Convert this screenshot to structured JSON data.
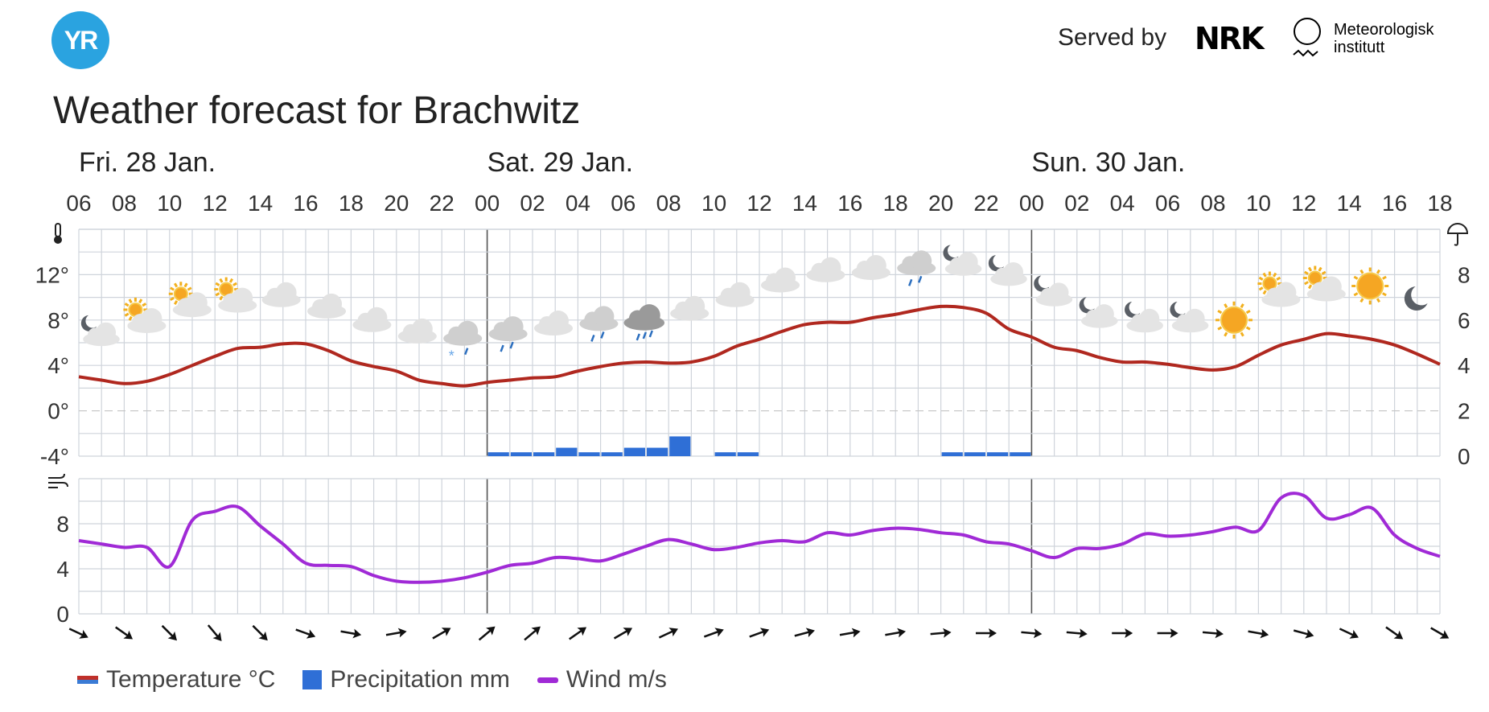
{
  "header": {
    "logo_text": "YR",
    "served_by": "Served by",
    "nrk_logo": "NRK",
    "met_name_line1": "Meteorologisk",
    "met_name_line2": "institutt"
  },
  "title": "Weather forecast for Brachwitz",
  "legend": {
    "temperature": "Temperature °C",
    "precipitation": "Precipitation mm",
    "wind": "Wind m/s"
  },
  "colors": {
    "temperature": "#b0281f",
    "precipitation": "#2f6fd6",
    "wind": "#a02ad6",
    "grid": "#cfd4db"
  },
  "chart_data": {
    "type": "line",
    "days": [
      {
        "label": "Fri. 28 Jan.",
        "hour_index": 0
      },
      {
        "label": "Sat. 29 Jan.",
        "hour_index": 18
      },
      {
        "label": "Sun. 30 Jan.",
        "hour_index": 42
      }
    ],
    "x_tick_labels": [
      "06",
      "08",
      "10",
      "12",
      "14",
      "16",
      "18",
      "20",
      "22",
      "00",
      "02",
      "04",
      "06",
      "08",
      "10",
      "12",
      "14",
      "16",
      "18",
      "20",
      "22",
      "00",
      "02",
      "04",
      "06",
      "08",
      "10",
      "12",
      "14",
      "16",
      "18"
    ],
    "temperature": {
      "unit": "°C",
      "y_ticks": [
        "-4°",
        "0°",
        "4°",
        "8°",
        "12°"
      ],
      "ylim": [
        -4,
        16
      ],
      "values": [
        3.0,
        2.7,
        2.4,
        2.6,
        3.2,
        4.0,
        4.8,
        5.5,
        5.6,
        5.9,
        5.9,
        5.3,
        4.4,
        3.9,
        3.5,
        2.7,
        2.4,
        2.2,
        2.5,
        2.7,
        2.9,
        3.0,
        3.5,
        3.9,
        4.2,
        4.3,
        4.2,
        4.3,
        4.8,
        5.7,
        6.3,
        7.0,
        7.6,
        7.8,
        7.8,
        8.2,
        8.5,
        8.9,
        9.2,
        9.1,
        8.6,
        7.2,
        6.5,
        5.6,
        5.3,
        4.7,
        4.3,
        4.3,
        4.1,
        3.8,
        3.6,
        3.9,
        4.9,
        5.8,
        6.3,
        6.8,
        6.6,
        6.3,
        5.8,
        5.0,
        4.1
      ]
    },
    "precipitation": {
      "unit": "mm",
      "y_ticks": [
        "0",
        "2",
        "4",
        "6",
        "8"
      ],
      "ylim": [
        0,
        10
      ],
      "values": [
        0,
        0,
        0,
        0,
        0,
        0,
        0,
        0,
        0,
        0,
        0,
        0,
        0,
        0,
        0,
        0,
        0,
        0,
        0.1,
        0.1,
        0.1,
        0.3,
        0.1,
        0.1,
        0.3,
        0.3,
        0.8,
        0,
        0.1,
        0.1,
        0,
        0,
        0,
        0,
        0,
        0,
        0,
        0,
        0.1,
        0.1,
        0.1,
        0.1,
        0,
        0,
        0,
        0,
        0,
        0,
        0,
        0,
        0,
        0,
        0,
        0,
        0,
        0,
        0,
        0,
        0,
        0
      ]
    },
    "wind": {
      "unit": "m/s",
      "y_ticks": [
        "0",
        "4",
        "8"
      ],
      "ylim": [
        0,
        12
      ],
      "values": [
        6.5,
        6.2,
        5.9,
        5.9,
        4.2,
        8.3,
        9.1,
        9.5,
        7.8,
        6.2,
        4.5,
        4.3,
        4.2,
        3.4,
        2.9,
        2.8,
        2.9,
        3.2,
        3.7,
        4.3,
        4.5,
        5.0,
        4.9,
        4.7,
        5.3,
        6.0,
        6.6,
        6.2,
        5.7,
        5.9,
        6.3,
        6.5,
        6.4,
        7.2,
        7.0,
        7.4,
        7.6,
        7.5,
        7.2,
        7.0,
        6.4,
        6.2,
        5.6,
        5.0,
        5.8,
        5.8,
        6.2,
        7.1,
        6.9,
        7.0,
        7.3,
        7.7,
        7.4,
        10.3,
        10.5,
        8.5,
        8.8,
        9.4,
        7.0,
        5.8,
        5.1
      ],
      "direction_degrees": [
        115,
        125,
        135,
        140,
        135,
        110,
        100,
        80,
        60,
        50,
        50,
        55,
        60,
        65,
        70,
        70,
        75,
        80,
        80,
        85,
        90,
        95,
        95,
        90,
        90,
        95,
        100,
        105,
        115,
        125,
        120
      ]
    },
    "symbols": [
      {
        "h": 0,
        "icon": "partly-cloudy-night",
        "y": 7.0
      },
      {
        "h": 2,
        "icon": "partly-cloudy-day",
        "y": 8.2
      },
      {
        "h": 4,
        "icon": "partly-cloudy-day",
        "y": 9.6
      },
      {
        "h": 6,
        "icon": "partly-cloudy-day",
        "y": 10.0
      },
      {
        "h": 8,
        "icon": "cloudy",
        "y": 10.2
      },
      {
        "h": 10,
        "icon": "cloudy",
        "y": 9.2
      },
      {
        "h": 12,
        "icon": "cloudy",
        "y": 8.0
      },
      {
        "h": 14,
        "icon": "cloudy",
        "y": 7.0
      },
      {
        "h": 16,
        "icon": "sleet",
        "y": 6.8
      },
      {
        "h": 18,
        "icon": "light-rain",
        "y": 7.2
      },
      {
        "h": 20,
        "icon": "cloudy",
        "y": 7.7
      },
      {
        "h": 22,
        "icon": "light-rain",
        "y": 8.1
      },
      {
        "h": 24,
        "icon": "rain-dark",
        "y": 8.2
      },
      {
        "h": 26,
        "icon": "cloudy",
        "y": 9.0
      },
      {
        "h": 28,
        "icon": "cloudy",
        "y": 10.2
      },
      {
        "h": 30,
        "icon": "cloudy",
        "y": 11.5
      },
      {
        "h": 32,
        "icon": "cloudy",
        "y": 12.4
      },
      {
        "h": 34,
        "icon": "cloudy",
        "y": 12.6
      },
      {
        "h": 36,
        "icon": "light-rain",
        "y": 13.0
      },
      {
        "h": 38,
        "icon": "partly-cloudy-night",
        "y": 13.2
      },
      {
        "h": 40,
        "icon": "partly-cloudy-night",
        "y": 12.3
      },
      {
        "h": 42,
        "icon": "partly-cloudy-night",
        "y": 10.5
      },
      {
        "h": 44,
        "icon": "partly-cloudy-night",
        "y": 8.6
      },
      {
        "h": 46,
        "icon": "partly-cloudy-night",
        "y": 8.2
      },
      {
        "h": 48,
        "icon": "partly-cloudy-night",
        "y": 8.2
      },
      {
        "h": 50,
        "icon": "clear-day",
        "y": 8.0
      },
      {
        "h": 52,
        "icon": "partly-cloudy-day",
        "y": 10.5
      },
      {
        "h": 54,
        "icon": "partly-cloudy-day",
        "y": 11.0
      },
      {
        "h": 56,
        "icon": "clear-day",
        "y": 11.0
      },
      {
        "h": 58,
        "icon": "clear-night",
        "y": 9.9
      }
    ],
    "grid": true,
    "zero_line": "dashed"
  }
}
